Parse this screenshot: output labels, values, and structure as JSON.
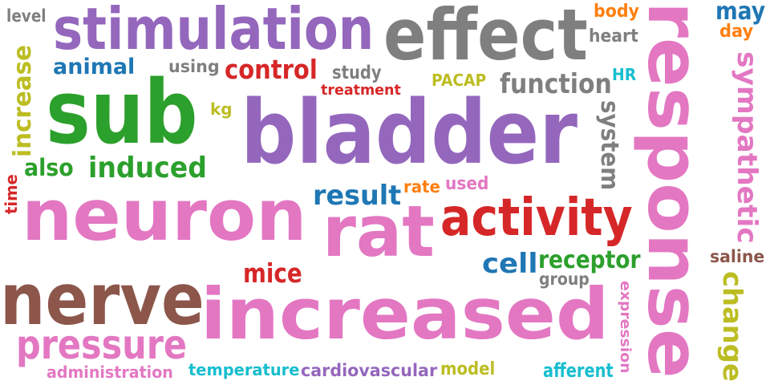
{
  "palette": {
    "purple": "#9467bd",
    "gray": "#7f7f7f",
    "pink": "#e377c2",
    "green": "#2ca02c",
    "red": "#d62728",
    "brown": "#8c564b",
    "blue": "#1f77b4",
    "olive": "#bcbd22",
    "cyan": "#17becf",
    "orange": "#ff7f0e"
  },
  "words": [
    {
      "text": "level",
      "color": "gray"
    },
    {
      "text": "stimulation",
      "color": "purple"
    },
    {
      "text": "effect",
      "color": "gray"
    },
    {
      "text": "body",
      "color": "orange"
    },
    {
      "text": "may",
      "color": "blue"
    },
    {
      "text": "day",
      "color": "orange"
    },
    {
      "text": "heart",
      "color": "gray"
    },
    {
      "text": "response",
      "color": "pink"
    },
    {
      "text": "animal",
      "color": "blue"
    },
    {
      "text": "using",
      "color": "gray"
    },
    {
      "text": "control",
      "color": "red"
    },
    {
      "text": "study",
      "color": "gray"
    },
    {
      "text": "treatment",
      "color": "red"
    },
    {
      "text": "PACAP",
      "color": "olive"
    },
    {
      "text": "function",
      "color": "gray"
    },
    {
      "text": "HR",
      "color": "cyan"
    },
    {
      "text": "sympathetic",
      "color": "pink"
    },
    {
      "text": "increase",
      "color": "olive"
    },
    {
      "text": "sub",
      "color": "green"
    },
    {
      "text": "kg",
      "color": "olive"
    },
    {
      "text": "bladder",
      "color": "purple"
    },
    {
      "text": "system",
      "color": "gray"
    },
    {
      "text": "also",
      "color": "green"
    },
    {
      "text": "induced",
      "color": "green"
    },
    {
      "text": "time",
      "color": "red"
    },
    {
      "text": "neuron",
      "color": "pink"
    },
    {
      "text": "result",
      "color": "blue"
    },
    {
      "text": "rate",
      "color": "orange"
    },
    {
      "text": "used",
      "color": "pink"
    },
    {
      "text": "rat",
      "color": "pink"
    },
    {
      "text": "activity",
      "color": "red"
    },
    {
      "text": "saline",
      "color": "brown"
    },
    {
      "text": "cell",
      "color": "blue"
    },
    {
      "text": "receptor",
      "color": "green"
    },
    {
      "text": "group",
      "color": "gray"
    },
    {
      "text": "mice",
      "color": "red"
    },
    {
      "text": "change",
      "color": "olive"
    },
    {
      "text": "nerve",
      "color": "brown"
    },
    {
      "text": "increased",
      "color": "pink"
    },
    {
      "text": "expression",
      "color": "pink"
    },
    {
      "text": "pressure",
      "color": "pink"
    },
    {
      "text": "administration",
      "color": "pink"
    },
    {
      "text": "temperature",
      "color": "cyan"
    },
    {
      "text": "cardiovascular",
      "color": "purple"
    },
    {
      "text": "model",
      "color": "olive"
    },
    {
      "text": "afferent",
      "color": "cyan"
    }
  ]
}
